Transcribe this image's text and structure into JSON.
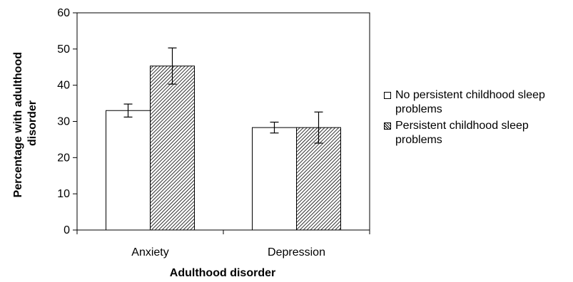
{
  "chart_data": {
    "type": "bar",
    "categories": [
      "Anxiety",
      "Depression"
    ],
    "series": [
      {
        "name": "No persistent childhood sleep problems",
        "values": [
          33,
          28.3
        ],
        "errors": [
          1.8,
          1.5
        ],
        "fill": "white"
      },
      {
        "name": "Persistent childhood sleep problems",
        "values": [
          45.3,
          28.3
        ],
        "errors": [
          5,
          4.3
        ],
        "fill": "hatched"
      }
    ],
    "title": "",
    "xlabel": "Adulthood disorder",
    "ylabel_lines": [
      "Percentage with adulthood",
      "disorder"
    ],
    "ylim": [
      0,
      60
    ],
    "yticks": [
      0,
      10,
      20,
      30,
      40,
      50,
      60
    ],
    "grid": false,
    "legend_position": "right",
    "colors": {
      "axis": "#000000",
      "bar_stroke": "#000000",
      "bar_plain": "#ffffff",
      "hatch": "#000000"
    }
  }
}
